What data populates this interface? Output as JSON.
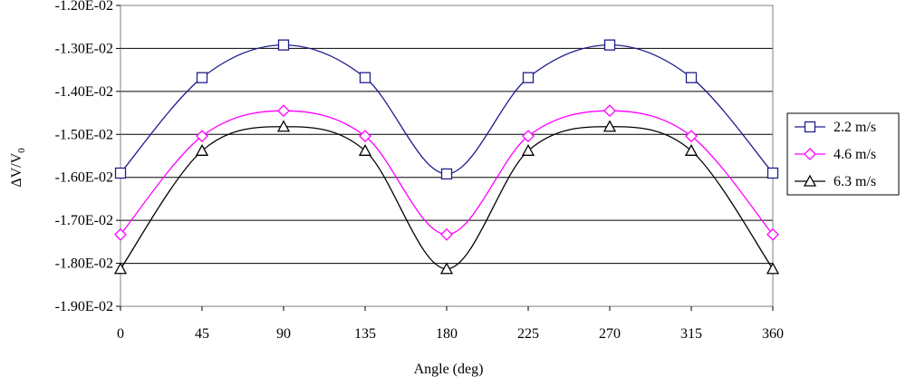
{
  "chart_data": {
    "type": "line",
    "title": "",
    "xlabel": "Angle (deg)",
    "ylabel_main": "ΔV/V",
    "ylabel_sub": "0",
    "x": [
      0,
      45,
      90,
      135,
      180,
      225,
      270,
      315,
      360
    ],
    "xticks": [
      "0",
      "45",
      "90",
      "135",
      "180",
      "225",
      "270",
      "315",
      "360"
    ],
    "ylim": [
      -0.019,
      -0.012
    ],
    "yticks": [
      -0.012,
      -0.013,
      -0.014,
      -0.015,
      -0.016,
      -0.017,
      -0.018,
      -0.019
    ],
    "yticklabels": [
      "-1.20E-02",
      "-1.30E-02",
      "-1.40E-02",
      "-1.50E-02",
      "-1.60E-02",
      "-1.70E-02",
      "-1.80E-02",
      "-1.90E-02"
    ],
    "grid": true,
    "legend_position": "right",
    "series": [
      {
        "name": "2.2 m/s",
        "color": "#1f1f8c",
        "marker": "square",
        "values": [
          -0.0159,
          -0.01368,
          -0.01292,
          -0.01368,
          -0.01592,
          -0.01368,
          -0.01292,
          -0.01368,
          -0.0159
        ]
      },
      {
        "name": "4.6 m/s",
        "color": "#ff00ff",
        "marker": "diamond",
        "values": [
          -0.01733,
          -0.01504,
          -0.01445,
          -0.01504,
          -0.01733,
          -0.01504,
          -0.01445,
          -0.01504,
          -0.01733
        ]
      },
      {
        "name": "6.3 m/s",
        "color": "#000000",
        "marker": "triangle",
        "values": [
          -0.01813,
          -0.01538,
          -0.01482,
          -0.01538,
          -0.01813,
          -0.01538,
          -0.01482,
          -0.01538,
          -0.01813
        ]
      }
    ]
  }
}
